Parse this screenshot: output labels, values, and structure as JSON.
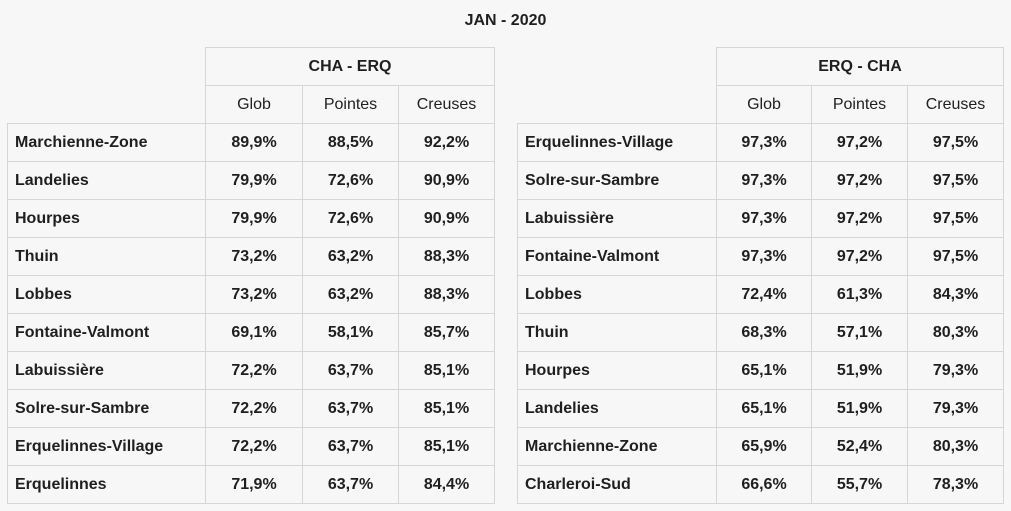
{
  "title": "JAN - 2020",
  "left": {
    "group_label": "CHA - ERQ",
    "columns": [
      "Glob",
      "Pointes",
      "Creuses"
    ],
    "rows": [
      {
        "name": "Marchienne-Zone",
        "values": [
          "89,9%",
          "88,5%",
          "92,2%"
        ]
      },
      {
        "name": "Landelies",
        "values": [
          "79,9%",
          "72,6%",
          "90,9%"
        ]
      },
      {
        "name": "Hourpes",
        "values": [
          "79,9%",
          "72,6%",
          "90,9%"
        ]
      },
      {
        "name": "Thuin",
        "values": [
          "73,2%",
          "63,2%",
          "88,3%"
        ]
      },
      {
        "name": "Lobbes",
        "values": [
          "73,2%",
          "63,2%",
          "88,3%"
        ]
      },
      {
        "name": "Fontaine-Valmont",
        "values": [
          "69,1%",
          "58,1%",
          "85,7%"
        ]
      },
      {
        "name": "Labuissière",
        "values": [
          "72,2%",
          "63,7%",
          "85,1%"
        ]
      },
      {
        "name": "Solre-sur-Sambre",
        "values": [
          "72,2%",
          "63,7%",
          "85,1%"
        ]
      },
      {
        "name": "Erquelinnes-Village",
        "values": [
          "72,2%",
          "63,7%",
          "85,1%"
        ]
      },
      {
        "name": "Erquelinnes",
        "values": [
          "71,9%",
          "63,7%",
          "84,4%"
        ]
      }
    ]
  },
  "right": {
    "group_label": "ERQ - CHA",
    "columns": [
      "Glob",
      "Pointes",
      "Creuses"
    ],
    "rows": [
      {
        "name": "Erquelinnes-Village",
        "values": [
          "97,3%",
          "97,2%",
          "97,5%"
        ]
      },
      {
        "name": "Solre-sur-Sambre",
        "values": [
          "97,3%",
          "97,2%",
          "97,5%"
        ]
      },
      {
        "name": "Labuissière",
        "values": [
          "97,3%",
          "97,2%",
          "97,5%"
        ]
      },
      {
        "name": "Fontaine-Valmont",
        "values": [
          "97,3%",
          "97,2%",
          "97,5%"
        ]
      },
      {
        "name": "Lobbes",
        "values": [
          "72,4%",
          "61,3%",
          "84,3%"
        ]
      },
      {
        "name": "Thuin",
        "values": [
          "68,3%",
          "57,1%",
          "80,3%"
        ]
      },
      {
        "name": "Hourpes",
        "values": [
          "65,1%",
          "51,9%",
          "79,3%"
        ]
      },
      {
        "name": "Landelies",
        "values": [
          "65,1%",
          "51,9%",
          "79,3%"
        ]
      },
      {
        "name": "Marchienne-Zone",
        "values": [
          "65,9%",
          "52,4%",
          "80,3%"
        ]
      },
      {
        "name": "Charleroi-Sud",
        "values": [
          "66,6%",
          "55,7%",
          "78,3%"
        ]
      }
    ]
  }
}
